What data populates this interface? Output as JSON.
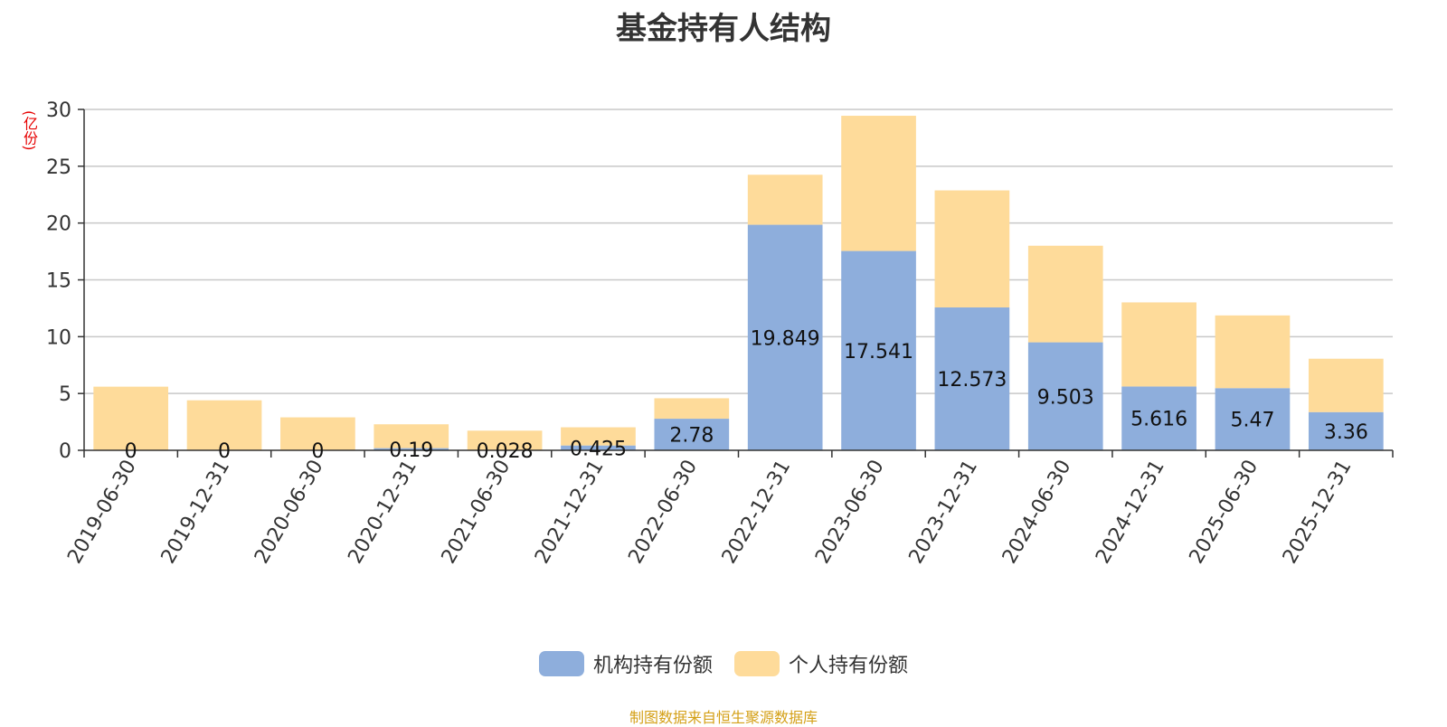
{
  "chart_data": {
    "type": "bar",
    "stacked": true,
    "title": "基金持有人结构",
    "ylabel": "(亿份)",
    "ylim": [
      0,
      30
    ],
    "yticks": [
      0,
      5,
      10,
      15,
      20,
      25,
      30
    ],
    "grid": true,
    "legend_position": "bottom-center",
    "categories": [
      "2019-06-30",
      "2019-12-31",
      "2020-06-30",
      "2020-12-31",
      "2021-06-30",
      "2021-12-31",
      "2022-06-30",
      "2022-12-31",
      "2023-06-30",
      "2023-12-31",
      "2024-06-30",
      "2024-12-31",
      "2025-06-30",
      "2025-12-31"
    ],
    "series": [
      {
        "name": "机构持有份额",
        "color": "#8eaedc",
        "values": [
          0,
          0,
          0,
          0.19,
          0.028,
          0.425,
          2.78,
          19.849,
          17.541,
          12.573,
          9.503,
          5.616,
          5.47,
          3.36
        ],
        "labels": [
          "0",
          "0",
          "0",
          "0.19",
          "0.028",
          "0.425",
          "2.78",
          "19.849",
          "17.541",
          "12.573",
          "9.503",
          "5.616",
          "5.47",
          "3.36"
        ]
      },
      {
        "name": "个人持有份额",
        "color": "#fedb9a",
        "values": [
          5.6,
          4.4,
          2.9,
          2.1,
          1.7,
          1.6,
          1.8,
          4.4,
          11.9,
          10.3,
          8.5,
          7.4,
          6.4,
          4.7
        ]
      }
    ]
  },
  "source": {
    "text": "制图数据来自恒生聚源数据库",
    "color": "#d4a017"
  }
}
